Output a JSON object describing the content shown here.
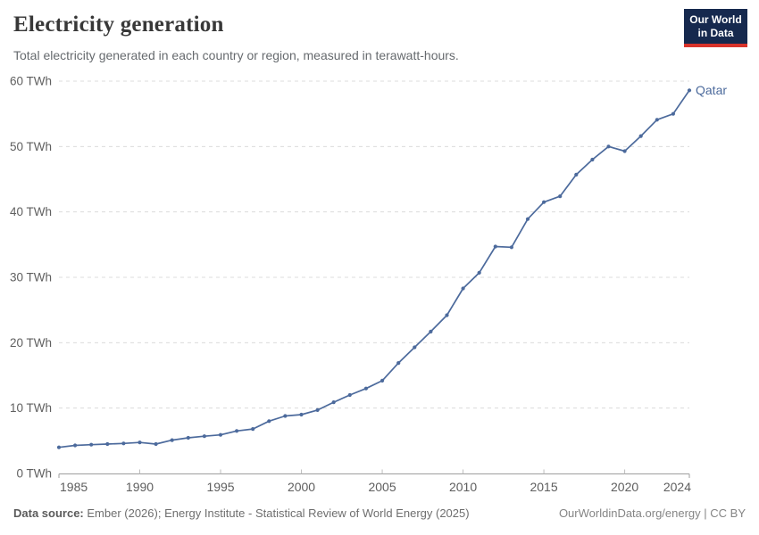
{
  "header": {
    "title": "Electricity generation",
    "subtitle": "Total electricity generated in each country or region, measured in terawatt-hours."
  },
  "logo": {
    "line1": "Our World",
    "line2": "in Data",
    "bg_color": "#16294e",
    "bar_color": "#d8332b"
  },
  "chart_data": {
    "type": "line",
    "title": "Electricity generation",
    "unit": "TWh",
    "grid": "horizontal dashed",
    "legend": "end-of-line entity label",
    "xlim": [
      1985,
      2024
    ],
    "ylim": [
      0,
      60
    ],
    "x": [
      1985,
      1986,
      1987,
      1988,
      1989,
      1990,
      1991,
      1992,
      1993,
      1994,
      1995,
      1996,
      1997,
      1998,
      1999,
      2000,
      2001,
      2002,
      2003,
      2004,
      2005,
      2006,
      2007,
      2008,
      2009,
      2010,
      2011,
      2012,
      2013,
      2014,
      2015,
      2016,
      2017,
      2018,
      2019,
      2020,
      2021,
      2022,
      2023,
      2024
    ],
    "series": [
      {
        "name": "Qatar",
        "color": "#4C6A9C",
        "values": [
          4.0,
          4.3,
          4.4,
          4.5,
          4.6,
          4.75,
          4.5,
          5.1,
          5.45,
          5.7,
          5.9,
          6.5,
          6.8,
          8.0,
          8.8,
          9.0,
          9.7,
          10.9,
          12.0,
          13.0,
          14.2,
          16.9,
          19.3,
          21.7,
          24.2,
          28.3,
          30.7,
          34.7,
          34.6,
          38.9,
          41.5,
          42.4,
          45.7,
          48.0,
          50.0,
          49.3,
          51.6,
          54.1,
          55.0,
          58.6
        ]
      }
    ],
    "yticks": [
      {
        "value": 0,
        "label": "0 TWh"
      },
      {
        "value": 10,
        "label": "10 TWh"
      },
      {
        "value": 20,
        "label": "20 TWh"
      },
      {
        "value": 30,
        "label": "30 TWh"
      },
      {
        "value": 40,
        "label": "40 TWh"
      },
      {
        "value": 50,
        "label": "50 TWh"
      },
      {
        "value": 60,
        "label": "60 TWh"
      }
    ],
    "xticks": [
      {
        "value": 1985,
        "label": "1985"
      },
      {
        "value": 1990,
        "label": "1990"
      },
      {
        "value": 1995,
        "label": "1995"
      },
      {
        "value": 2000,
        "label": "2000"
      },
      {
        "value": 2005,
        "label": "2005"
      },
      {
        "value": 2010,
        "label": "2010"
      },
      {
        "value": 2015,
        "label": "2015"
      },
      {
        "value": 2020,
        "label": "2020"
      },
      {
        "value": 2024,
        "label": "2024"
      }
    ],
    "theme": {
      "gridline_color": "#dcdcdc",
      "axis_color": "#9e9e9e",
      "tick_label_color": "#606060",
      "accent": "#4C6A9C"
    }
  },
  "footer": {
    "source_label": "Data source:",
    "source_text": " Ember (2026); Energy Institute - Statistical Review of World Energy (2025)",
    "link_text": "OurWorldinData.org/energy | CC BY"
  }
}
